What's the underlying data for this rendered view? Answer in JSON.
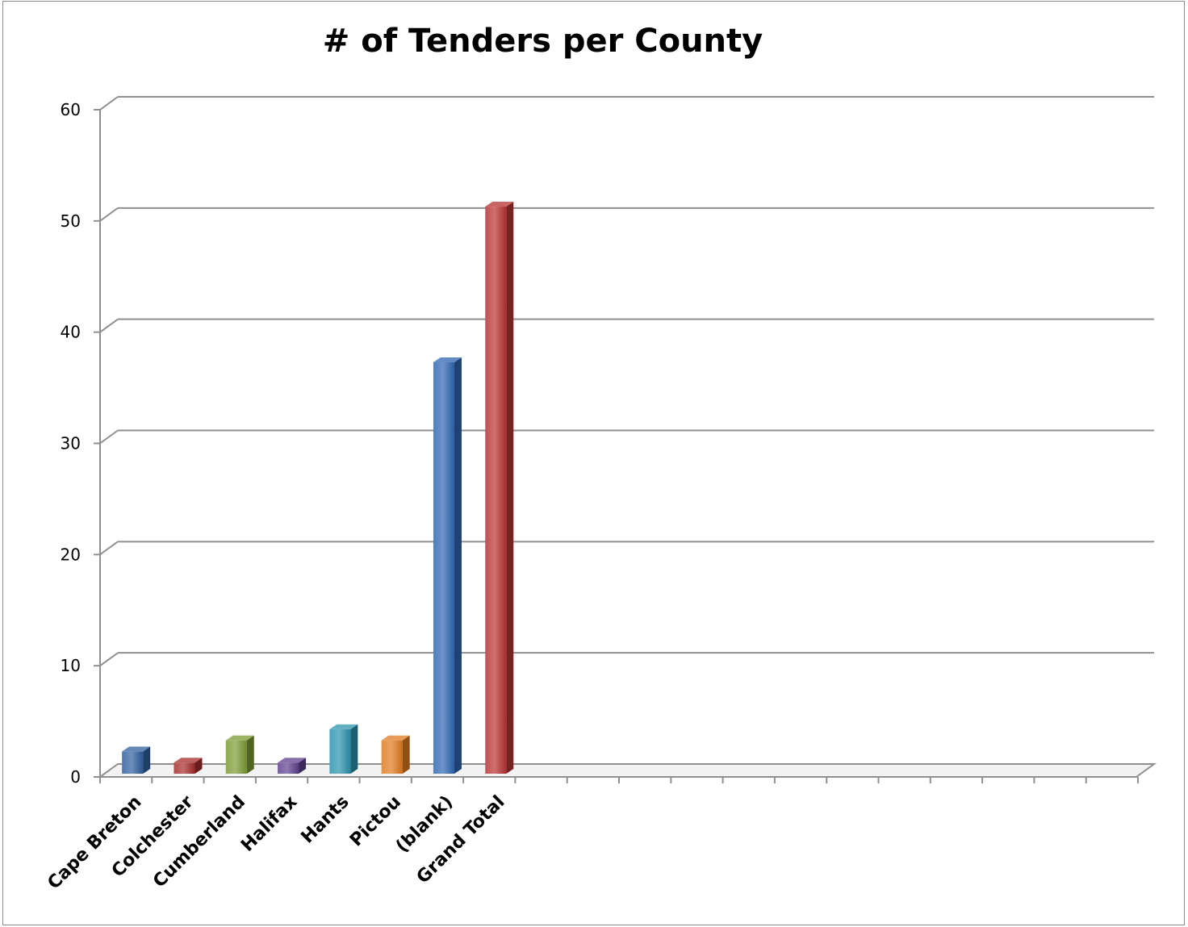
{
  "chart_data": {
    "type": "bar",
    "title": "# of Tenders per County",
    "xlabel": "",
    "ylabel": "",
    "categories": [
      "Cape Breton",
      "Colchester",
      "Cumberland",
      "Halifax",
      "Hants",
      "Pictou",
      "(blank)",
      "Grand Total"
    ],
    "values": [
      2,
      1,
      3,
      1,
      4,
      3,
      37,
      51
    ],
    "ylim": [
      0,
      60
    ],
    "yticks": [
      "0",
      "10",
      "20",
      "30",
      "40",
      "50",
      "60"
    ],
    "grid": true,
    "legend": "none",
    "style": "3d-column",
    "colors": [
      "#2f5f9e",
      "#a62b2b",
      "#7c9a32",
      "#5e3f8e",
      "#2a93ad",
      "#e07a1f",
      "#2f66b3",
      "#b83232"
    ]
  }
}
